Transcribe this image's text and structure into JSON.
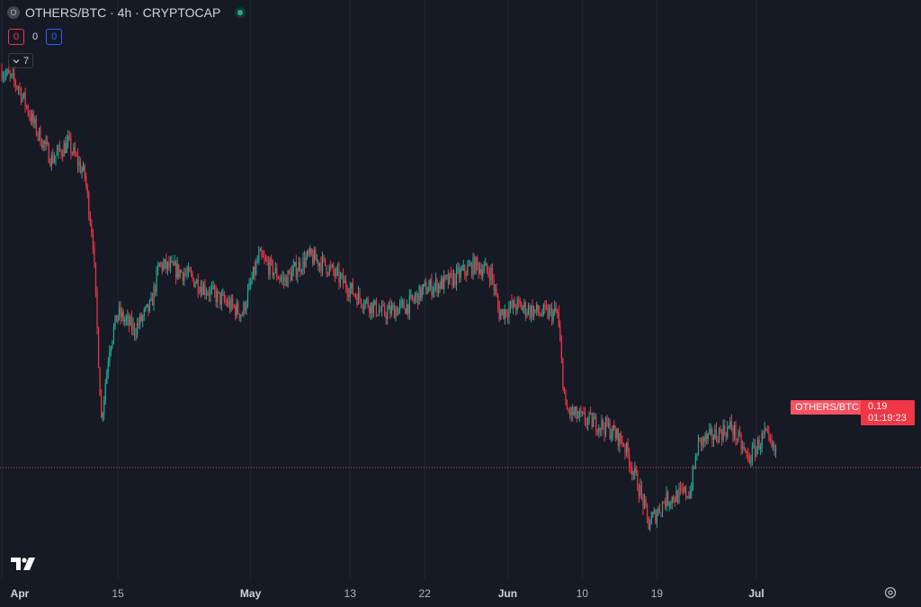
{
  "header": {
    "symbol_icon": "O",
    "title": "OTHERS/BTC · 4h · CRYPTOCAP",
    "status": "market-open-dot"
  },
  "counters": {
    "down": "0",
    "mid": "0",
    "up": "0"
  },
  "indicators_toggle": {
    "icon": "chevron-down-icon",
    "count": "7"
  },
  "price_tag": {
    "symbol": "OTHERS/BTC",
    "value": "0.19",
    "countdown": "01:19:23"
  },
  "colors": {
    "up": "#22ab94",
    "down": "#f23645",
    "grid": "#232632",
    "price_line": "#f23645",
    "background": "#161a25"
  },
  "x_axis": [
    {
      "label": "Apr",
      "bold": true
    },
    {
      "label": "15",
      "bold": false
    },
    {
      "label": "May",
      "bold": true
    },
    {
      "label": "13",
      "bold": false
    },
    {
      "label": "22",
      "bold": false
    },
    {
      "label": "Jun",
      "bold": true
    },
    {
      "label": "10",
      "bold": false
    },
    {
      "label": "19",
      "bold": false
    },
    {
      "label": "Jul",
      "bold": true
    }
  ],
  "chart_data": {
    "type": "candlestick",
    "interval": "4h",
    "last_price": 0.19,
    "anchors": [
      {
        "date": "Apr 1",
        "price": 0.239
      },
      {
        "date": "Apr 3",
        "price": 0.237
      },
      {
        "date": "Apr 5",
        "price": 0.232
      },
      {
        "date": "Apr 7",
        "price": 0.228
      },
      {
        "date": "Apr 9",
        "price": 0.23
      },
      {
        "date": "Apr 11",
        "price": 0.226
      },
      {
        "date": "Apr 12",
        "price": 0.218
      },
      {
        "date": "Apr 13",
        "price": 0.196
      },
      {
        "date": "Apr 14",
        "price": 0.205
      },
      {
        "date": "Apr 15",
        "price": 0.209
      },
      {
        "date": "Apr 17",
        "price": 0.207
      },
      {
        "date": "Apr 19",
        "price": 0.21
      },
      {
        "date": "Apr 20",
        "price": 0.215
      },
      {
        "date": "Apr 23",
        "price": 0.214
      },
      {
        "date": "Apr 27",
        "price": 0.211
      },
      {
        "date": "Apr 30",
        "price": 0.209
      },
      {
        "date": "May 2",
        "price": 0.216
      },
      {
        "date": "May 5",
        "price": 0.213
      },
      {
        "date": "May 8",
        "price": 0.216
      },
      {
        "date": "May 10",
        "price": 0.215
      },
      {
        "date": "May 12",
        "price": 0.213
      },
      {
        "date": "May 14",
        "price": 0.211
      },
      {
        "date": "May 17",
        "price": 0.209
      },
      {
        "date": "May 20",
        "price": 0.21
      },
      {
        "date": "May 22",
        "price": 0.212
      },
      {
        "date": "May 25",
        "price": 0.213
      },
      {
        "date": "May 28",
        "price": 0.215
      },
      {
        "date": "May 30",
        "price": 0.214
      },
      {
        "date": "May 31",
        "price": 0.209
      },
      {
        "date": "Jun 2",
        "price": 0.21
      },
      {
        "date": "Jun 5",
        "price": 0.209
      },
      {
        "date": "Jun 7",
        "price": 0.209
      },
      {
        "date": "Jun 8",
        "price": 0.197
      },
      {
        "date": "Jun 10",
        "price": 0.196
      },
      {
        "date": "Jun 13",
        "price": 0.195
      },
      {
        "date": "Jun 15",
        "price": 0.193
      },
      {
        "date": "Jun 17",
        "price": 0.187
      },
      {
        "date": "Jun 18",
        "price": 0.183
      },
      {
        "date": "Jun 20",
        "price": 0.186
      },
      {
        "date": "Jun 23",
        "price": 0.187
      },
      {
        "date": "Jun 24",
        "price": 0.193
      },
      {
        "date": "Jun 26",
        "price": 0.194
      },
      {
        "date": "Jun 28",
        "price": 0.195
      },
      {
        "date": "Jun 30",
        "price": 0.191
      },
      {
        "date": "Jul 2",
        "price": 0.194
      },
      {
        "date": "Jul 3",
        "price": 0.192
      }
    ],
    "price_range": [
      0.18,
      0.241
    ]
  }
}
